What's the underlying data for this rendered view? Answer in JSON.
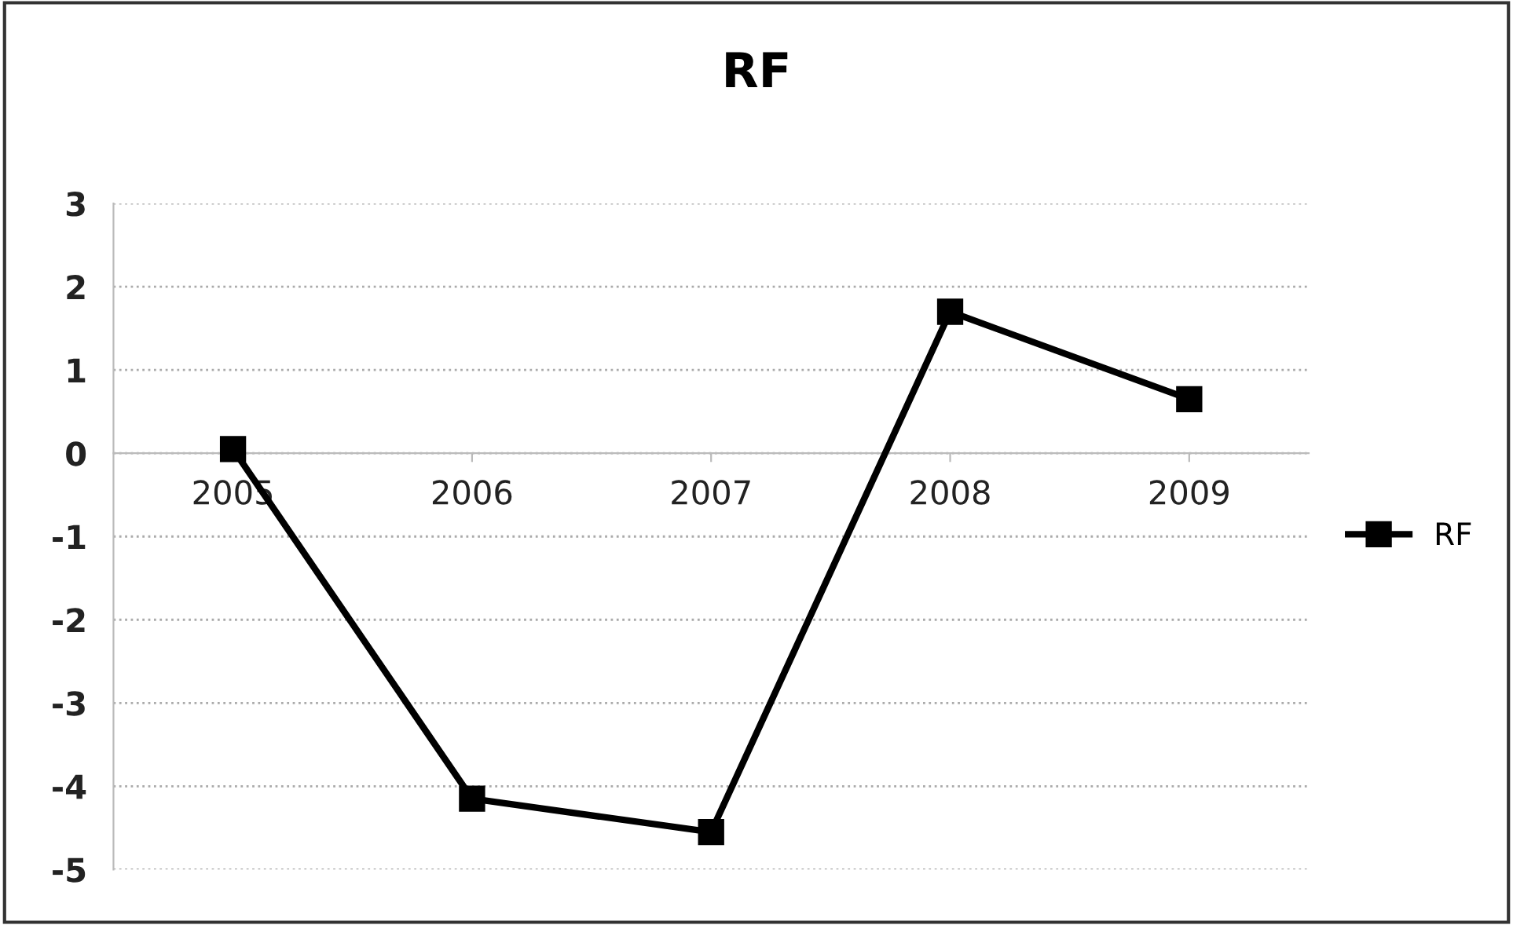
{
  "chart_data": {
    "type": "line",
    "title": "RF",
    "categories": [
      "2005",
      "2006",
      "2007",
      "2008",
      "2009"
    ],
    "series": [
      {
        "name": "RF",
        "color": "#000000",
        "values": [
          0.05,
          -4.15,
          -4.55,
          1.7,
          0.65
        ]
      }
    ],
    "ylim": [
      -5,
      3
    ],
    "yticks": [
      -5,
      -4,
      -3,
      -2,
      -1,
      0,
      1,
      2,
      3
    ],
    "grid": "y",
    "legend": "right",
    "marker": "square",
    "line_style": "solid"
  }
}
